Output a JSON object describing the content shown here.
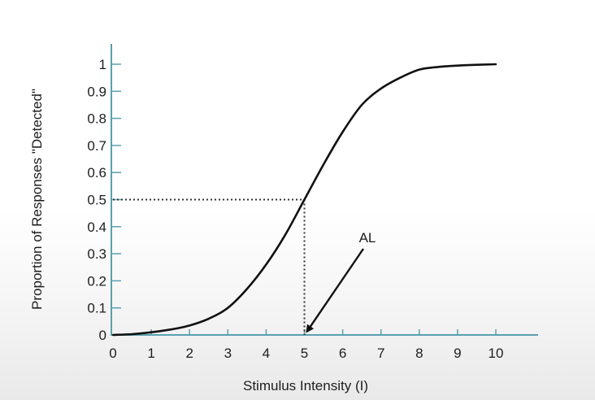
{
  "chart_data": {
    "type": "line",
    "title": "",
    "xlabel": "Stimulus Intensity (I)",
    "ylabel": "Proportion of Responses \"Detected\"",
    "xlim": [
      0,
      10
    ],
    "ylim": [
      0,
      1
    ],
    "x_ticks": [
      "0",
      "1",
      "2",
      "3",
      "4",
      "5",
      "6",
      "7",
      "8",
      "9",
      "10"
    ],
    "y_ticks": [
      "0",
      "0.1",
      "0.2",
      "0.3",
      "0.4",
      "0.5",
      "0.6",
      "0.7",
      "0.8",
      "0.9",
      "1"
    ],
    "grid": false,
    "legend": "none",
    "series": [
      {
        "x": [
          0,
          0.5,
          1,
          1.5,
          2,
          2.5,
          3,
          3.5,
          4,
          4.5,
          5,
          5.5,
          6,
          6.5,
          7,
          7.5,
          8,
          8.5,
          9,
          9.5,
          10
        ],
        "y": [
          0.0,
          0.003,
          0.01,
          0.02,
          0.035,
          0.06,
          0.1,
          0.17,
          0.26,
          0.37,
          0.5,
          0.63,
          0.75,
          0.85,
          0.91,
          0.95,
          0.98,
          0.99,
          0.995,
          0.998,
          1.0
        ],
        "color": "#111111"
      }
    ],
    "reference_point": {
      "x": 5,
      "y": 0.5
    },
    "annotations": [
      {
        "text": "AL",
        "points_to": {
          "x": 5,
          "y": 0
        }
      }
    ],
    "axis_color": "#5aa0b0"
  }
}
